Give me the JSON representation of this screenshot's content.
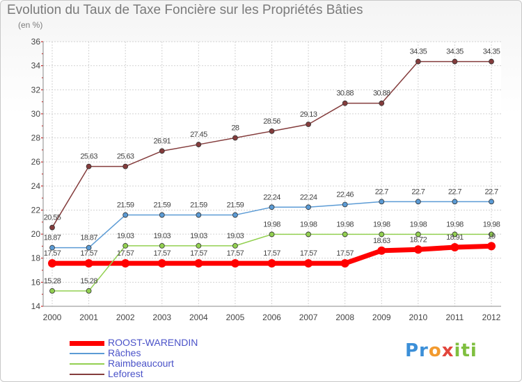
{
  "chart_data": {
    "type": "line",
    "title": "Evolution du Taux de Taxe Foncière sur les Propriétés Bâties",
    "subtitle": "(en %)",
    "x": [
      "2000",
      "2001",
      "2002",
      "2003",
      "2004",
      "2005",
      "2006",
      "2007",
      "2008",
      "2009",
      "2010",
      "2011",
      "2012"
    ],
    "ylim": [
      14,
      36
    ],
    "yticks": [
      "14",
      "16",
      "18",
      "20",
      "22",
      "24",
      "26",
      "28",
      "30",
      "32",
      "34",
      "36"
    ],
    "grid": true,
    "legend_position": "bottom-left",
    "series": [
      {
        "name": "ROOST-WARENDIN",
        "color": "#ff0000",
        "values": [
          17.57,
          17.57,
          17.57,
          17.57,
          17.57,
          17.57,
          17.57,
          17.57,
          17.57,
          18.63,
          18.72,
          18.91,
          19
        ],
        "labels": [
          "17.57",
          "17.57",
          "17.57",
          "17.57",
          "17.57",
          "17.57",
          "17.57",
          "17.57",
          "17.57",
          "18.63",
          "18.72",
          "18.91",
          "19"
        ]
      },
      {
        "name": "Râches",
        "color": "#5b9bd5",
        "values": [
          18.87,
          18.87,
          21.59,
          21.59,
          21.59,
          21.59,
          22.24,
          22.24,
          22.46,
          22.7,
          22.7,
          22.7,
          22.7
        ],
        "labels": [
          "18.87",
          "18.87",
          "21.59",
          "21.59",
          "21.59",
          "21.59",
          "22.24",
          "22.24",
          "22.46",
          "22.7",
          "22.7",
          "22.7",
          "22.7"
        ]
      },
      {
        "name": "Raimbeaucourt",
        "color": "#92d050",
        "values": [
          15.28,
          15.28,
          19.03,
          19.03,
          19.03,
          19.03,
          19.98,
          19.98,
          19.98,
          19.98,
          19.98,
          19.98,
          19.98
        ],
        "labels": [
          "15.28",
          "15.28",
          "19.03",
          "19.03",
          "19.03",
          "19.03",
          "19.98",
          "19.98",
          "19.98",
          "19.98",
          "19.98",
          "19.98",
          "19.98"
        ]
      },
      {
        "name": "Leforest",
        "color": "#843c3c",
        "values": [
          20.55,
          25.63,
          25.63,
          26.91,
          27.45,
          28,
          28.56,
          29.13,
          30.88,
          30.88,
          34.35,
          34.35,
          34.35
        ],
        "labels": [
          "20.55",
          "25.63",
          "25.63",
          "26.91",
          "27.45",
          "28",
          "28.56",
          "29.13",
          "30.88",
          "30.88",
          "34.35",
          "34.35",
          "34.35"
        ]
      }
    ]
  },
  "logo": {
    "parts": [
      "Pr",
      "o",
      "x",
      "iti"
    ]
  }
}
